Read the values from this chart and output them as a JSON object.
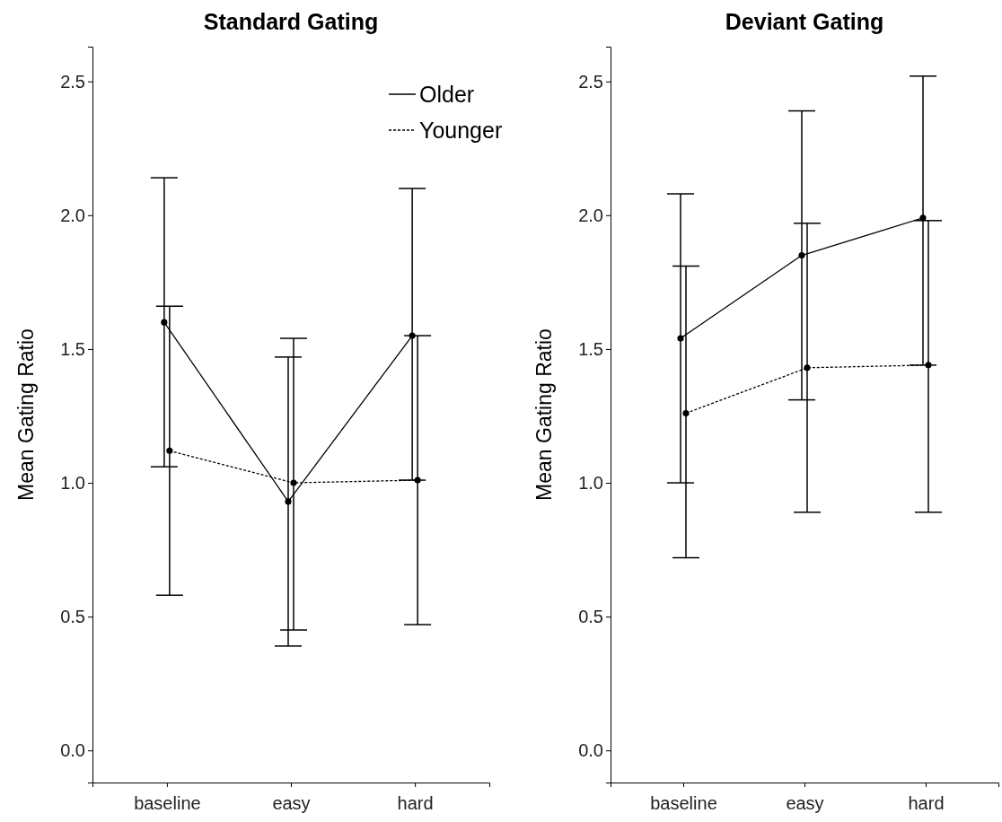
{
  "chart_data": [
    {
      "type": "line",
      "title": "Standard Gating",
      "ylabel": "Mean Gating Ratio",
      "categories": [
        "baseline",
        "easy",
        "hard"
      ],
      "ylim": [
        -0.12,
        2.63
      ],
      "yticks": [
        {
          "value": 0,
          "label": "0.0"
        },
        0.5,
        {
          "value": 1,
          "label": "1.0"
        },
        1.5,
        {
          "value": 2,
          "label": "2.0"
        },
        2.5
      ],
      "grid": false,
      "legend": "top right",
      "marker": "circle",
      "series": [
        {
          "name": "Older",
          "color": "#000000",
          "line_style": "solid",
          "values": [
            1.6,
            0.93,
            1.55
          ],
          "errors": [
            [
              1.06,
              2.14
            ],
            [
              0.39,
              1.47
            ],
            [
              1.01,
              2.1
            ]
          ]
        },
        {
          "name": "Younger",
          "color": "#000000",
          "line_style": "dotted",
          "values": [
            1.12,
            1.0,
            1.01
          ],
          "errors": [
            [
              0.58,
              1.66
            ],
            [
              0.45,
              1.54
            ],
            [
              0.47,
              1.55
            ]
          ]
        }
      ]
    },
    {
      "type": "line",
      "title": "Deviant Gating",
      "ylabel": "Mean Gating Ratio",
      "categories": [
        "baseline",
        "easy",
        "hard"
      ],
      "ylim": [
        -0.12,
        2.63
      ],
      "yticks": [
        {
          "value": 0,
          "label": "0.0"
        },
        0.5,
        {
          "value": 1,
          "label": "1.0"
        },
        1.5,
        {
          "value": 2,
          "label": "2.0"
        },
        2.5
      ],
      "grid": false,
      "marker": "circle",
      "series": [
        {
          "color": "#000000",
          "line_style": "solid",
          "values": [
            1.54,
            1.85,
            1.99
          ],
          "errors": [
            [
              1.0,
              2.08
            ],
            [
              1.31,
              2.39
            ],
            [
              1.44,
              2.52
            ]
          ]
        },
        {
          "color": "#000000",
          "line_style": "dotted",
          "values": [
            1.26,
            1.43,
            1.44
          ],
          "errors": [
            [
              0.72,
              1.81
            ],
            [
              0.89,
              1.97
            ],
            [
              0.89,
              1.98
            ]
          ]
        }
      ]
    }
  ]
}
